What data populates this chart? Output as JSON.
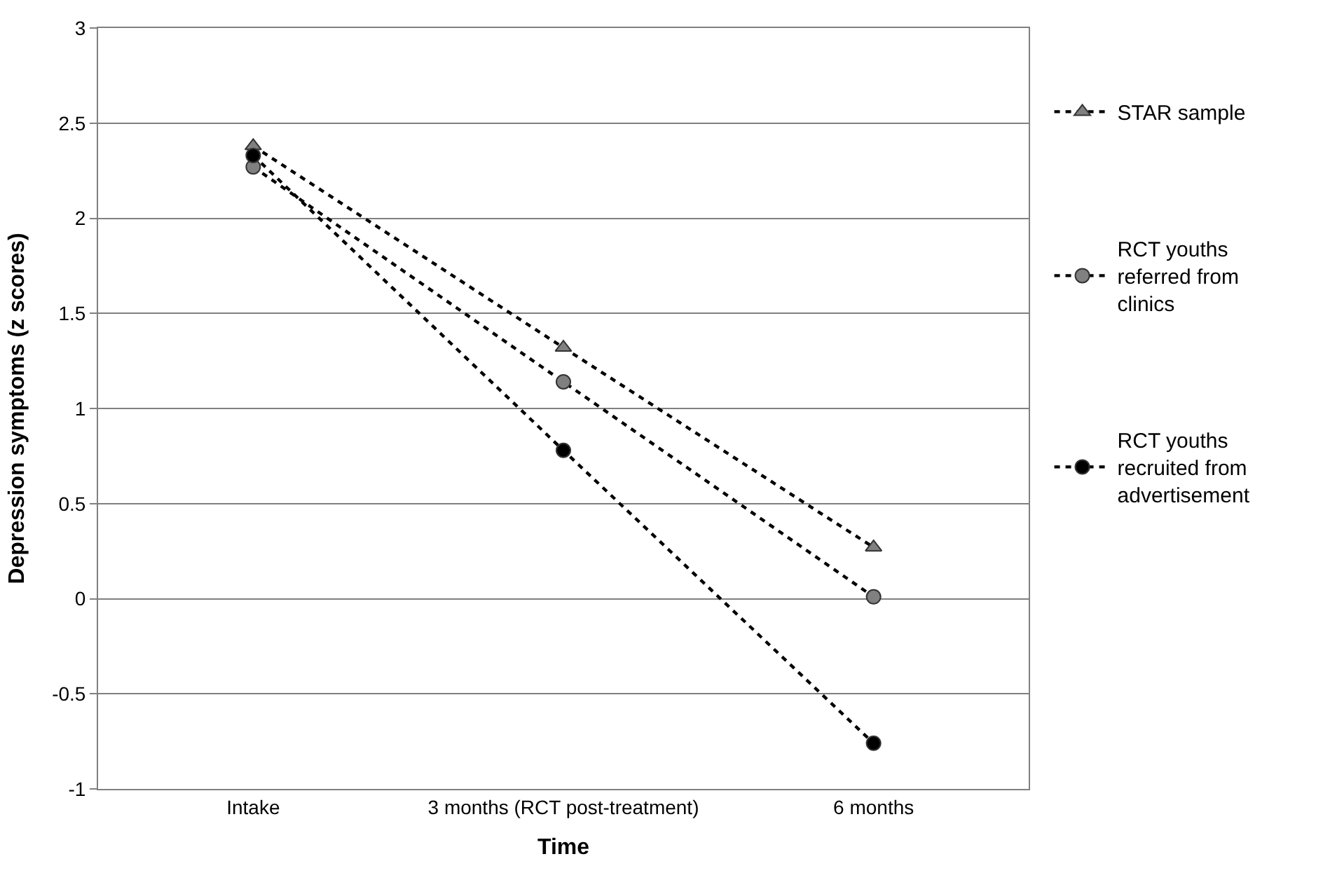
{
  "chart_data": {
    "type": "line",
    "xlabel": "Time",
    "ylabel": "Depression symptoms (z scores)",
    "categories": [
      "Intake",
      "3 months (RCT post-treatment)",
      "6 months"
    ],
    "series": [
      {
        "name": "STAR sample",
        "color": "#808080",
        "marker": "triangle",
        "values": [
          2.38,
          1.32,
          0.27
        ]
      },
      {
        "name": "RCT youths referred from clinics",
        "color": "#808080",
        "marker": "circle",
        "values": [
          2.27,
          1.14,
          0.01
        ]
      },
      {
        "name": "RCT youths recruited from advertisement",
        "color": "#000000",
        "marker": "circle",
        "values": [
          2.33,
          0.78,
          -0.76
        ]
      }
    ],
    "ylim": [
      -1,
      3
    ],
    "yticks": [
      -1,
      -0.5,
      0,
      0.5,
      1,
      1.5,
      2,
      2.5,
      3
    ],
    "grid": "y",
    "legend": "right",
    "line_style": "dashed"
  }
}
